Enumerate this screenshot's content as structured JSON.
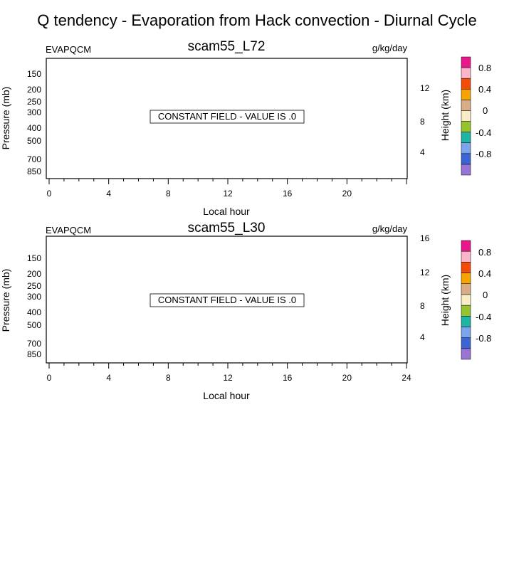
{
  "figure": {
    "title": "Q tendency - Evaporation from Hack convection - Diurnal Cycle"
  },
  "chart_data": [
    {
      "type": "heatmap",
      "title": "scam55_L72",
      "variable_label": "EVAPQCM",
      "units_label": "g/kg/day",
      "xlabel": "Local hour",
      "ylabel": "Pressure (mb)",
      "ylabel_right": "Height (km)",
      "x_ticks": [
        "0",
        "4",
        "8",
        "12",
        "16",
        "20"
      ],
      "y_ticks": [
        "150",
        "200",
        "250",
        "300",
        "400",
        "500",
        "700",
        "850"
      ],
      "y_right_ticks": [
        "12",
        "8",
        "4"
      ],
      "xlim": [
        0,
        24
      ],
      "annotation": "CONSTANT FIELD - VALUE IS .0",
      "colorbar": {
        "labels": [
          "0.8",
          "0.4",
          "0",
          "-0.4",
          "-0.8"
        ],
        "colors": [
          "#e8188c",
          "#fcb4c8",
          "#f44c08",
          "#f8a400",
          "#d8ac84",
          "#f8ecc4",
          "#94c42c",
          "#20b4a4",
          "#7ca4ec",
          "#3c64d4",
          "#9874d4"
        ]
      }
    },
    {
      "type": "heatmap",
      "title": "scam55_L30",
      "variable_label": "EVAPQCM",
      "units_label": "g/kg/day",
      "xlabel": "Local hour",
      "ylabel": "Pressure (mb)",
      "ylabel_right": "Height (km)",
      "x_ticks": [
        "0",
        "4",
        "8",
        "12",
        "16",
        "20",
        "24"
      ],
      "y_ticks": [
        "150",
        "200",
        "250",
        "300",
        "400",
        "500",
        "700",
        "850"
      ],
      "y_right_ticks": [
        "16",
        "12",
        "8",
        "4"
      ],
      "xlim": [
        0,
        24
      ],
      "annotation": "CONSTANT FIELD - VALUE IS .0",
      "colorbar": {
        "labels": [
          "0.8",
          "0.4",
          "0",
          "-0.4",
          "-0.8"
        ],
        "colors": [
          "#e8188c",
          "#fcb4c8",
          "#f44c08",
          "#f8a400",
          "#d8ac84",
          "#f8ecc4",
          "#94c42c",
          "#20b4a4",
          "#7ca4ec",
          "#3c64d4",
          "#9874d4"
        ]
      }
    }
  ]
}
